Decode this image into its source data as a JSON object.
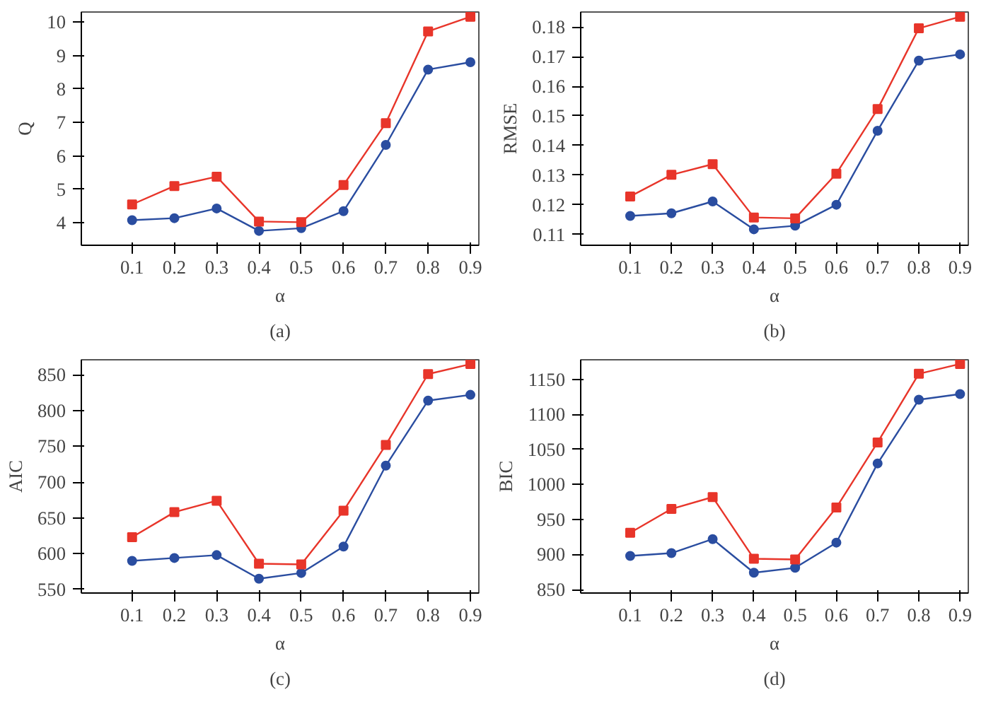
{
  "chart_data": [
    {
      "type": "line",
      "xlabel": "α",
      "ylabel": "Q",
      "annotations": [
        "(a)"
      ],
      "grid": false,
      "line_style": "solid",
      "x": [
        0.1,
        0.2,
        0.3,
        0.4,
        0.5,
        0.6,
        0.7,
        0.8,
        0.9
      ],
      "xlim": [
        -0.02,
        0.92
      ],
      "xticks": [
        0.1,
        0.2,
        0.3,
        0.4,
        0.5,
        0.6,
        0.7,
        0.8,
        0.9
      ],
      "ylim": [
        3.33,
        10.3
      ],
      "yticks": [
        4,
        5,
        6,
        7,
        8,
        9,
        10
      ],
      "series": [
        {
          "color": "#2a4da0",
          "marker": "circle",
          "values": [
            4.08,
            4.14,
            4.43,
            3.76,
            3.84,
            4.35,
            6.33,
            8.58,
            8.8
          ]
        },
        {
          "color": "#e8352a",
          "marker": "square",
          "values": [
            4.55,
            5.1,
            5.38,
            4.04,
            4.02,
            5.13,
            6.98,
            9.72,
            10.16
          ]
        }
      ]
    },
    {
      "type": "line",
      "xlabel": "α",
      "ylabel": "RMSE",
      "annotations": [
        "(b)"
      ],
      "grid": false,
      "line_style": "solid",
      "x": [
        0.1,
        0.2,
        0.3,
        0.4,
        0.5,
        0.6,
        0.7,
        0.8,
        0.9
      ],
      "xlim": [
        -0.02,
        0.92
      ],
      "xticks": [
        0.1,
        0.2,
        0.3,
        0.4,
        0.5,
        0.6,
        0.7,
        0.8,
        0.9
      ],
      "ylim": [
        0.1063,
        0.1851
      ],
      "yticks": [
        0.11,
        0.12,
        0.13,
        0.14,
        0.15,
        0.16,
        0.17,
        0.18
      ],
      "series": [
        {
          "color": "#2a4da0",
          "marker": "circle",
          "values": [
            0.1162,
            0.1171,
            0.1211,
            0.1117,
            0.1129,
            0.12,
            0.145,
            0.1687,
            0.1708
          ]
        },
        {
          "color": "#e8352a",
          "marker": "square",
          "values": [
            0.1228,
            0.1301,
            0.1337,
            0.1157,
            0.1154,
            0.1305,
            0.1523,
            0.1796,
            0.1835
          ]
        }
      ]
    },
    {
      "type": "line",
      "xlabel": "α",
      "ylabel": "AIC",
      "annotations": [
        "(c)"
      ],
      "grid": false,
      "line_style": "solid",
      "x": [
        0.1,
        0.2,
        0.3,
        0.4,
        0.5,
        0.6,
        0.7,
        0.8,
        0.9
      ],
      "xlim": [
        -0.02,
        0.92
      ],
      "xticks": [
        0.1,
        0.2,
        0.3,
        0.4,
        0.5,
        0.6,
        0.7,
        0.8,
        0.9
      ],
      "ylim": [
        545,
        871
      ],
      "yticks": [
        550,
        600,
        650,
        700,
        750,
        800,
        850
      ],
      "series": [
        {
          "color": "#2a4da0",
          "marker": "circle",
          "values": [
            590,
            594,
            598,
            565,
            573,
            610,
            723,
            814,
            822
          ]
        },
        {
          "color": "#e8352a",
          "marker": "square",
          "values": [
            623,
            658,
            674,
            586,
            585,
            660,
            752,
            851,
            865
          ]
        }
      ]
    },
    {
      "type": "line",
      "xlabel": "α",
      "ylabel": "BIC",
      "annotations": [
        "(d)"
      ],
      "grid": false,
      "line_style": "solid",
      "x": [
        0.1,
        0.2,
        0.3,
        0.4,
        0.5,
        0.6,
        0.7,
        0.8,
        0.9
      ],
      "xlim": [
        -0.02,
        0.92
      ],
      "xticks": [
        0.1,
        0.2,
        0.3,
        0.4,
        0.5,
        0.6,
        0.7,
        0.8,
        0.9
      ],
      "ylim": [
        845,
        1178
      ],
      "yticks": [
        850,
        900,
        950,
        1000,
        1050,
        1100,
        1150
      ],
      "series": [
        {
          "color": "#2a4da0",
          "marker": "circle",
          "values": [
            898,
            902,
            922,
            874,
            881,
            917,
            1030,
            1121,
            1129
          ]
        },
        {
          "color": "#e8352a",
          "marker": "square",
          "values": [
            931,
            965,
            982,
            894,
            893,
            967,
            1060,
            1158,
            1172
          ]
        }
      ]
    }
  ]
}
